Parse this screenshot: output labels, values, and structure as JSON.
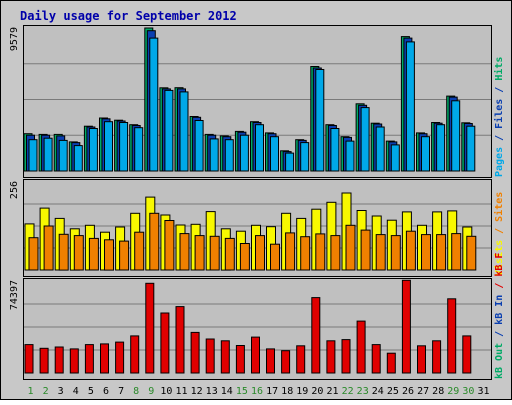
{
  "title": "Daily usage for September 2012",
  "colors": {
    "title": "#0000aa",
    "hits": "#00aa66",
    "files": "#0a3fb0",
    "pages": "#00a8e8",
    "visits": "#f8f800",
    "sites": "#f08000",
    "kb": "#e00000",
    "panel_bg": "#c0c0c0",
    "grid": "#7a7a7a",
    "weekend_day": "#2a8a2a",
    "weekday": "#000000"
  },
  "panels": [
    {
      "id": "hits-panel",
      "scale_label": "9579",
      "legend": [
        {
          "text": "Pages",
          "color": "#00a8e8"
        },
        {
          "text": " / ",
          "color": "#0a3fb0"
        },
        {
          "text": "Files",
          "color": "#0a3fb0"
        },
        {
          "text": " / ",
          "color": "#0a3fb0"
        },
        {
          "text": "Hits",
          "color": "#00aa66"
        }
      ]
    },
    {
      "id": "visits-panel",
      "scale_label": "256",
      "legend": [
        {
          "text": "Visits",
          "color": "#f8f800"
        },
        {
          "text": " / ",
          "color": "#f08000"
        },
        {
          "text": "Sites",
          "color": "#f08000"
        }
      ]
    },
    {
      "id": "kb-panel",
      "scale_label": "74397",
      "legend": [
        {
          "text": "kB Out",
          "color": "#00aa66"
        },
        {
          "text": " / ",
          "color": "#0a3fb0"
        },
        {
          "text": "kB In",
          "color": "#0a3fb0"
        },
        {
          "text": " / ",
          "color": "#e00000"
        },
        {
          "text": "kB F",
          "color": "#e00000"
        }
      ]
    }
  ],
  "chart_data": {
    "type": "bar",
    "title": "Daily usage for September 2012",
    "categories": [
      "1",
      "2",
      "3",
      "4",
      "5",
      "6",
      "7",
      "8",
      "9",
      "10",
      "11",
      "12",
      "13",
      "14",
      "15",
      "16",
      "17",
      "18",
      "19",
      "20",
      "21",
      "22",
      "23",
      "24",
      "25",
      "26",
      "27",
      "28",
      "29",
      "30",
      "31"
    ],
    "weekend_days": [
      "1",
      "2",
      "8",
      "9",
      "15",
      "16",
      "22",
      "23",
      "29",
      "30"
    ],
    "panels": [
      {
        "name": "hits-files-pages",
        "ymax": 9579,
        "series": [
          {
            "name": "Hits",
            "color": "#00aa66",
            "values": [
              2500,
              2450,
              2450,
              1950,
              3000,
              3550,
              3400,
              3100,
              9579,
              5570,
              5580,
              3650,
              2450,
              2350,
              2650,
              3300,
              2550,
              1350,
              2100,
              7000,
              3100,
              2300,
              4500,
              3200,
              2000,
              9000,
              2550,
              3250,
              5020,
              3230,
              null
            ]
          },
          {
            "name": "Files",
            "color": "#0a3fb0",
            "values": [
              2400,
              2400,
              2350,
              1900,
              2950,
              3500,
              3350,
              3050,
              9400,
              5500,
              5500,
              3600,
              2400,
              2300,
              2600,
              3250,
              2500,
              1300,
              2050,
              6900,
              3050,
              2250,
              4400,
              3150,
              1950,
              8900,
              2500,
              3200,
              4950,
              3180,
              null
            ]
          },
          {
            "name": "Pages",
            "color": "#00a8e8",
            "values": [
              2100,
              2200,
              2050,
              1700,
              2850,
              3300,
              3250,
              2900,
              8900,
              5400,
              5300,
              3380,
              2150,
              2100,
              2400,
              3100,
              2300,
              1200,
              1900,
              6800,
              2850,
              2000,
              4250,
              2950,
              1750,
              8650,
              2300,
              3100,
              4700,
              3000,
              null
            ]
          }
        ]
      },
      {
        "name": "visits-sites",
        "ymax": 256,
        "series": [
          {
            "name": "Visits",
            "color": "#f8f800",
            "values": [
              134,
              180,
              150,
              120,
              130,
              110,
              125,
              165,
              212,
              160,
              131,
              133,
              170,
              120,
              113,
              130,
              126,
              165,
              150,
              177,
              197,
              224,
              173,
              157,
              145,
              169,
              130,
              169,
              172,
              125,
              null
            ]
          },
          {
            "name": "Sites",
            "color": "#f08000",
            "values": [
              94,
              128,
              104,
              100,
              92,
              88,
              84,
              110,
              165,
              144,
              106,
              100,
              98,
              92,
              77,
              100,
              75,
              108,
              97,
              105,
              100,
              130,
              116,
              103,
              100,
              113,
              103,
              103,
              106,
              98,
              null
            ]
          }
        ]
      },
      {
        "name": "kbytes",
        "ymax": 74397,
        "series": [
          {
            "name": "kB F",
            "color": "#e00000",
            "values": [
              23000,
              20000,
              21000,
              19500,
              23000,
              23500,
              25000,
              30000,
              72500,
              48500,
              53700,
              32800,
              27500,
              26000,
              22200,
              29000,
              19500,
              18000,
              22000,
              61000,
              26000,
              27000,
              42000,
              23000,
              16000,
              75000,
              22000,
              26000,
              60000,
              30000,
              null
            ]
          }
        ]
      }
    ]
  }
}
